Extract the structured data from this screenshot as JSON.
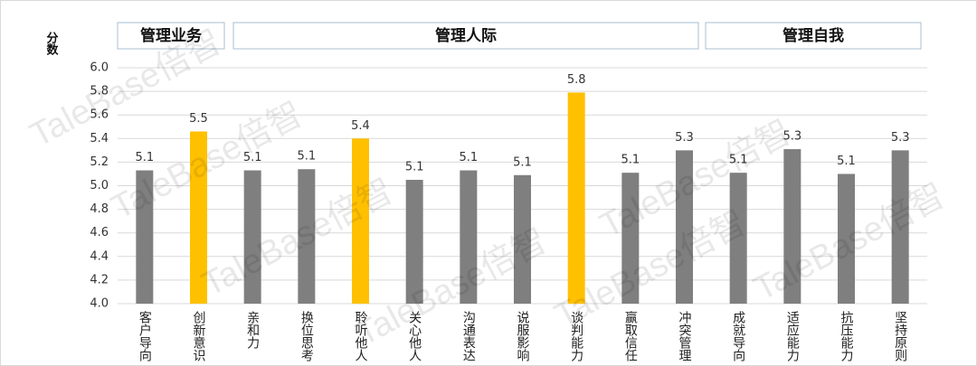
{
  "chart_data": {
    "type": "bar",
    "y_label": "分数",
    "groups": [
      "管理业务",
      "管理人际",
      "管理自我"
    ],
    "watermark": "TaleBase倍智",
    "categories": [
      "客户导向",
      "创新意识",
      "亲和力",
      "换位思考",
      "聆听他人",
      "关心他人",
      "沟通表达",
      "说服影响",
      "谈判能力",
      "赢取信任",
      "冲突管理",
      "成就导向",
      "适应能力",
      "抗压能力",
      "坚持原则"
    ],
    "values": [
      5.13,
      5.46,
      5.13,
      5.14,
      5.4,
      5.05,
      5.13,
      5.09,
      5.79,
      5.11,
      5.3,
      5.11,
      5.31,
      5.1,
      5.3
    ],
    "value_labels": [
      "5.1",
      "5.5",
      "5.1",
      "5.1",
      "5.4",
      "5.1",
      "5.1",
      "5.1",
      "5.8",
      "5.1",
      "5.3",
      "5.1",
      "5.3",
      "5.1",
      "5.3"
    ],
    "colors": [
      "#7f7f7f",
      "#ffc000",
      "#7f7f7f",
      "#7f7f7f",
      "#ffc000",
      "#7f7f7f",
      "#7f7f7f",
      "#7f7f7f",
      "#ffc000",
      "#7f7f7f",
      "#7f7f7f",
      "#7f7f7f",
      "#7f7f7f",
      "#7f7f7f",
      "#7f7f7f"
    ],
    "ylim": [
      4.0,
      6.0
    ],
    "yticks": [
      {
        "value": 4.0,
        "label": "4.0"
      },
      4.2,
      4.4,
      4.6,
      4.8,
      {
        "value": 5.0,
        "label": "5.0"
      },
      5.2,
      5.4,
      5.6,
      5.8,
      {
        "value": 6.0,
        "label": "6.0"
      }
    ],
    "grid": true
  }
}
